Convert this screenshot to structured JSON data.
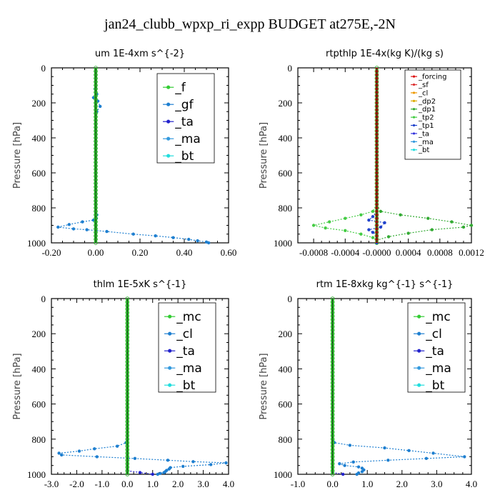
{
  "figure_title": "jan24_clubb_wpxp_ri_expp  BUDGET at275E,-2N",
  "colors": {
    "_f": "#33cc33",
    "_gf": "#1e7fd0",
    "_ta": "#2222cc",
    "_ma": "#3399dd",
    "_bt": "#22dddd",
    "_mc": "#33cc33",
    "_cl": "#1e7fd0",
    "_forcing": "#dd1111",
    "_sf": "#dd3333",
    "_cl_r": "#ee9900",
    "_dp2": "#ddaa00",
    "_dp1": "#33aa33",
    "_tp2": "#44cc44",
    "_tp1": "#2244cc",
    "_ta_r": "#3333dd",
    "_ma_r": "#3399dd",
    "_bt_r": "#22dddd"
  },
  "chart_data": [
    {
      "type": "line",
      "title": "um   1E-4xm s^{-2}",
      "ylabel": "Pressure [hPa]",
      "xlim": [
        -0.2,
        0.6
      ],
      "ylim": [
        1000,
        0
      ],
      "x_ticks": [
        "-0.20",
        "0.00",
        "0.20",
        "0.40",
        "0.60"
      ],
      "y_ticks": [
        "0",
        "200",
        "400",
        "600",
        "800",
        "1000"
      ],
      "legend": [
        "_f",
        "_gf",
        "_ta",
        "_ma",
        "_bt"
      ],
      "series": [
        {
          "name": "_gf",
          "points": [
            [
              0,
              0
            ],
            [
              0,
              60
            ],
            [
              -0.003,
              120
            ],
            [
              0.005,
              150
            ],
            [
              -0.01,
              170
            ],
            [
              0.01,
              190
            ],
            [
              0.02,
              220
            ],
            [
              0.005,
              250
            ],
            [
              0,
              300
            ],
            [
              0,
              500
            ],
            [
              0,
              700
            ],
            [
              0,
              800
            ],
            [
              0.005,
              840
            ],
            [
              0.003,
              860
            ],
            [
              -0.01,
              870
            ],
            [
              -0.06,
              880
            ],
            [
              -0.12,
              895
            ],
            [
              -0.17,
              910
            ],
            [
              -0.1,
              920
            ],
            [
              -0.04,
              925
            ],
            [
              0.05,
              935
            ],
            [
              0.17,
              950
            ],
            [
              0.27,
              960
            ],
            [
              0.35,
              970
            ],
            [
              0.42,
              980
            ],
            [
              0.46,
              988
            ],
            [
              0.5,
              995
            ],
            [
              0.51,
              1000
            ]
          ]
        },
        {
          "name": "_f",
          "points": [
            [
              0,
              0
            ],
            [
              0,
              200
            ],
            [
              0,
              400
            ],
            [
              0,
              600
            ],
            [
              0,
              800
            ],
            [
              0,
              1000
            ]
          ]
        }
      ]
    },
    {
      "type": "line",
      "title": "rtpthlp   1E-4x(kg K)/(kg s)",
      "ylabel": "Pressure [hPa]",
      "xlim": [
        -0.001,
        0.0012
      ],
      "ylim": [
        1000,
        0
      ],
      "x_ticks": [
        "-0.0008",
        "-0.0004",
        "-0.0000",
        "0.0004",
        "0.0008",
        "0.0012"
      ],
      "x_tick_values": [
        -0.0008,
        -0.0004,
        0,
        0.0004,
        0.0008,
        0.0012
      ],
      "y_ticks": [
        "0",
        "200",
        "400",
        "600",
        "800",
        "1000"
      ],
      "legend": [
        "_forcing",
        "_sf",
        "_cl",
        "_dp2",
        "_dp1",
        "_tp2",
        "_tp1",
        "_ta",
        "_ma",
        "_bt"
      ],
      "series": [
        {
          "name": "_dp1",
          "points": [
            [
              0,
              0
            ],
            [
              0,
              780
            ],
            [
              5e-05,
              820
            ],
            [
              0.0003,
              840
            ],
            [
              0.00065,
              860
            ],
            [
              0.00095,
              880
            ],
            [
              0.0012,
              900
            ],
            [
              0.0011,
              910
            ],
            [
              0.0007,
              925
            ],
            [
              0.0004,
              945
            ],
            [
              0.00015,
              965
            ],
            [
              0,
              985
            ],
            [
              0,
              1000
            ]
          ]
        },
        {
          "name": "_tp2",
          "points": [
            [
              0,
              780
            ],
            [
              -5e-05,
              820
            ],
            [
              -0.0002,
              840
            ],
            [
              -0.0004,
              860
            ],
            [
              -0.0006,
              880
            ],
            [
              -0.0008,
              900
            ],
            [
              -0.00065,
              915
            ],
            [
              -0.0004,
              930
            ],
            [
              -0.0002,
              950
            ],
            [
              -5e-05,
              970
            ],
            [
              0,
              985
            ],
            [
              0,
              1000
            ]
          ]
        },
        {
          "name": "_tp1",
          "points": [
            [
              0,
              820
            ],
            [
              -5e-05,
              850
            ],
            [
              -0.0001,
              870
            ],
            [
              0.0001,
              885
            ],
            [
              5e-05,
              910
            ],
            [
              -0.0001,
              925
            ],
            [
              -5e-05,
              940
            ],
            [
              0,
              955
            ],
            [
              0,
              1000
            ]
          ]
        },
        {
          "name": "_forcing",
          "points": [
            [
              0,
              0
            ],
            [
              0,
              200
            ],
            [
              0,
              400
            ],
            [
              0,
              600
            ],
            [
              0,
              800
            ],
            [
              0,
              1000
            ]
          ]
        }
      ]
    },
    {
      "type": "line",
      "title": "thlm   1E-5xK s^{-1}",
      "ylabel": "Pressure [hPa]",
      "xlim": [
        -3.0,
        4.0
      ],
      "ylim": [
        1000,
        0
      ],
      "x_ticks": [
        "-3.0",
        "-2.0",
        "-1.0",
        "0.0",
        "1.0",
        "2.0",
        "3.0",
        "4.0"
      ],
      "y_ticks": [
        "0",
        "200",
        "400",
        "600",
        "800",
        "1000"
      ],
      "legend": [
        "_mc",
        "_cl",
        "_ta",
        "_ma",
        "_bt"
      ],
      "series": [
        {
          "name": "_cl",
          "points": [
            [
              0,
              0
            ],
            [
              0,
              800
            ],
            [
              -0.05,
              820
            ],
            [
              -0.4,
              840
            ],
            [
              -1.3,
              855
            ],
            [
              -1.9,
              868
            ],
            [
              -2.7,
              880
            ],
            [
              -2.6,
              890
            ],
            [
              -1.2,
              900
            ],
            [
              0.3,
              910
            ],
            [
              1.6,
              920
            ],
            [
              2.6,
              928
            ],
            [
              3.9,
              935
            ],
            [
              3.3,
              945
            ],
            [
              2.2,
              955
            ],
            [
              1.7,
              962
            ],
            [
              1.65,
              970
            ],
            [
              1.55,
              978
            ],
            [
              1.5,
              985
            ],
            [
              1.45,
              990
            ],
            [
              1.3,
              995
            ],
            [
              1.2,
              1000
            ]
          ]
        },
        {
          "name": "_ta",
          "points": [
            [
              0,
              980
            ],
            [
              0.5,
              990
            ],
            [
              1.0,
              1000
            ]
          ]
        },
        {
          "name": "_mc",
          "points": [
            [
              0,
              0
            ],
            [
              0,
              200
            ],
            [
              0,
              400
            ],
            [
              0,
              600
            ],
            [
              0,
              800
            ],
            [
              0,
              1000
            ]
          ]
        }
      ]
    },
    {
      "type": "line",
      "title": "rtm   1E-8xkg kg^{-1} s^{-1}",
      "ylabel": "Pressure [hPa]",
      "xlim": [
        -1.0,
        4.0
      ],
      "ylim": [
        1000,
        0
      ],
      "x_ticks": [
        "-1.0",
        "0.0",
        "1.0",
        "2.0",
        "3.0",
        "4.0"
      ],
      "y_ticks": [
        "0",
        "200",
        "400",
        "600",
        "800",
        "1000"
      ],
      "legend": [
        "_mc",
        "_cl",
        "_ta",
        "_ma",
        "_bt"
      ],
      "series": [
        {
          "name": "_cl",
          "points": [
            [
              0,
              0
            ],
            [
              0,
              780
            ],
            [
              0.01,
              810
            ],
            [
              0.05,
              820
            ],
            [
              0.5,
              835
            ],
            [
              1.5,
              850
            ],
            [
              2.2,
              865
            ],
            [
              2.9,
              880
            ],
            [
              3.8,
              900
            ],
            [
              2.7,
              910
            ],
            [
              1.6,
              920
            ],
            [
              0.6,
              930
            ],
            [
              0.2,
              940
            ],
            [
              0.35,
              950
            ],
            [
              0.75,
              958
            ],
            [
              0.85,
              965
            ],
            [
              0.9,
              975
            ],
            [
              0.85,
              985
            ],
            [
              0.75,
              992
            ],
            [
              0.7,
              1000
            ]
          ]
        },
        {
          "name": "_ta",
          "points": [
            [
              0,
              990
            ],
            [
              0.3,
              1000
            ]
          ]
        },
        {
          "name": "_mc",
          "points": [
            [
              0,
              0
            ],
            [
              0,
              200
            ],
            [
              0,
              400
            ],
            [
              0,
              600
            ],
            [
              0,
              800
            ],
            [
              0,
              1000
            ]
          ]
        }
      ]
    }
  ]
}
